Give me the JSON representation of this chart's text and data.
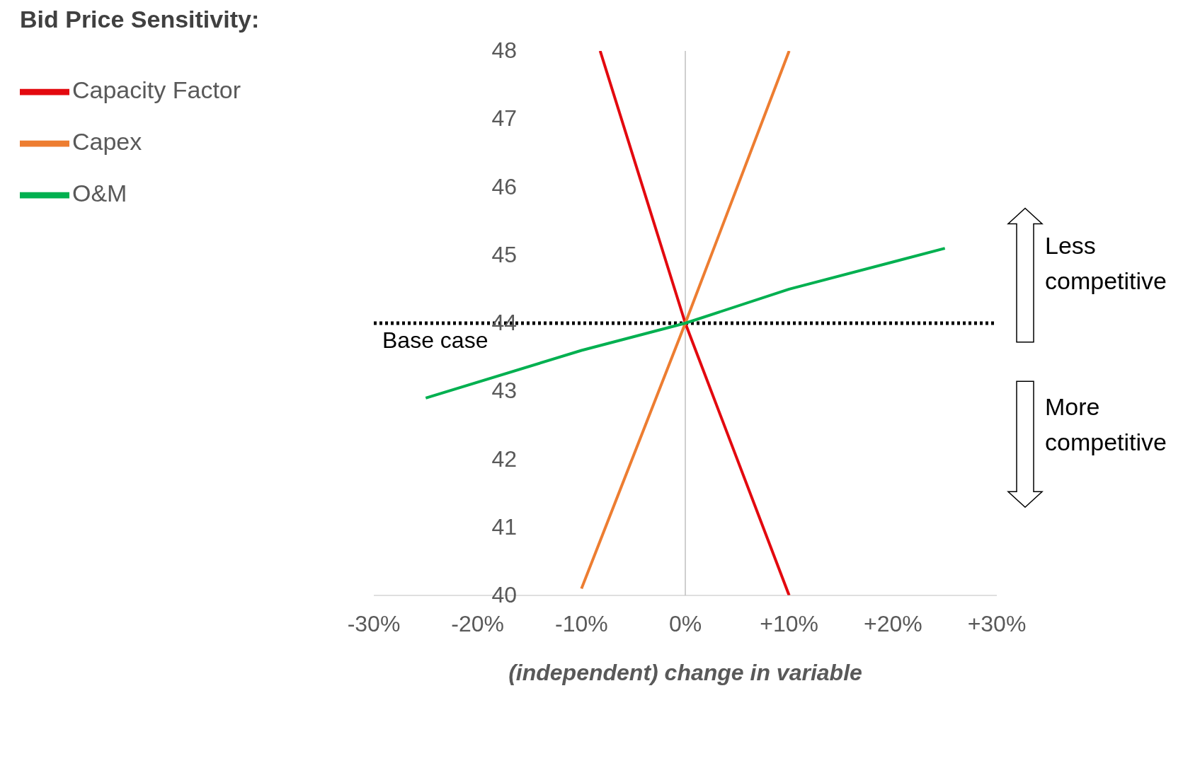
{
  "chart_data": {
    "type": "line",
    "title": "Bid Price Sensitivity:",
    "xlabel": "(independent) change in variable",
    "xlim": [
      -30,
      30
    ],
    "ylim": [
      40,
      48
    ],
    "xticks": [
      {
        "value": -30,
        "label": "-30%"
      },
      {
        "value": -20,
        "label": "-20%"
      },
      {
        "value": -10,
        "label": "-10%"
      },
      {
        "value": 0,
        "label": "0%"
      },
      {
        "value": 10,
        "label": "+10%"
      },
      {
        "value": 20,
        "label": "+20%"
      },
      {
        "value": 30,
        "label": "+30%"
      }
    ],
    "yticks": [
      40,
      41,
      42,
      43,
      44,
      45,
      46,
      47,
      48
    ],
    "series": [
      {
        "name": "Capacity Factor",
        "color": "#e3090f",
        "x": [
          -8.2,
          0,
          10
        ],
        "values": [
          48,
          44,
          40
        ]
      },
      {
        "name": "Capex",
        "color": "#ed7d31",
        "x": [
          -10,
          0,
          10
        ],
        "values": [
          40.1,
          44,
          48
        ]
      },
      {
        "name": "O&M",
        "color": "#00b050",
        "x": [
          -25,
          -10,
          0,
          10,
          25
        ],
        "values": [
          42.9,
          43.6,
          44,
          44.5,
          45.1
        ]
      }
    ],
    "ref_lines": [
      {
        "axis": "y",
        "value": 44,
        "label": "Base case",
        "color": "#000000",
        "line_style": "dotted"
      }
    ],
    "annotations": [
      "Less competitive",
      "More competitive"
    ],
    "legend": "top left",
    "grid": false,
    "marker": "none",
    "line_style": "solid"
  }
}
